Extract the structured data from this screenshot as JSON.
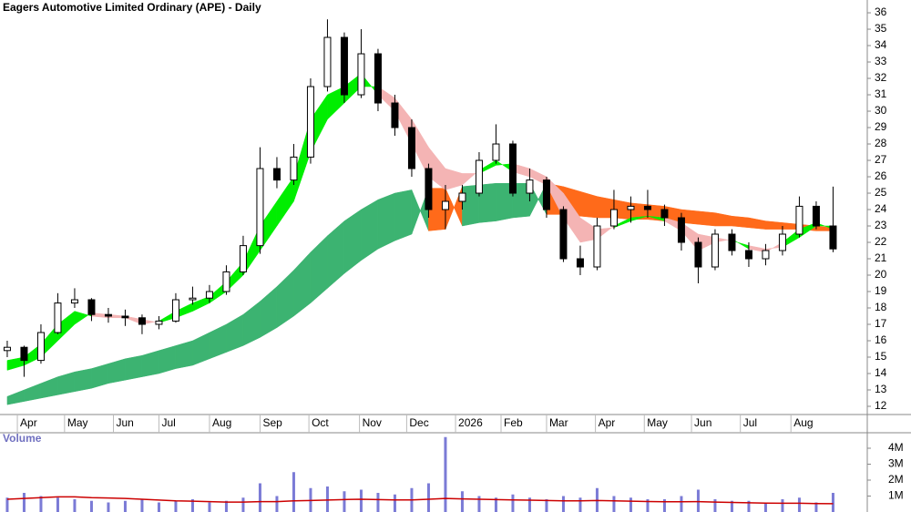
{
  "chart_data": [
    {
      "type": "candlestick",
      "title": "Eagers Automotive Limited Ordinary (APE) - Daily",
      "x": [
        0,
        1,
        2,
        3,
        4,
        5,
        6,
        7,
        8,
        9,
        10,
        11,
        12,
        13,
        14,
        15,
        16,
        17,
        18,
        19,
        20,
        21,
        22,
        23,
        24,
        25,
        26,
        27,
        28,
        29,
        30,
        31,
        32,
        33,
        34,
        35,
        36,
        37,
        38,
        39,
        40,
        41,
        42,
        43,
        44,
        45,
        46,
        47,
        48,
        49
      ],
      "open": [
        15.4,
        15.6,
        14.8,
        16.5,
        18.3,
        18.5,
        17.6,
        17.5,
        17.4,
        17.0,
        17.2,
        18.5,
        18.6,
        19.0,
        20.2,
        21.8,
        26.5,
        25.8,
        27.2,
        31.5,
        34.5,
        31.0,
        33.5,
        30.5,
        29.0,
        26.5,
        24.0,
        24.5,
        25.0,
        27.0,
        28.0,
        25.0,
        25.8,
        24.0,
        21.0,
        20.5,
        23.0,
        24.0,
        24.2,
        24.0,
        23.5,
        22.0,
        20.5,
        22.5,
        21.5,
        21.0,
        21.5,
        22.5,
        24.2,
        23.0
      ],
      "high": [
        16.0,
        15.7,
        17.0,
        18.9,
        19.2,
        18.6,
        18.0,
        17.9,
        17.6,
        17.5,
        18.9,
        19.3,
        19.4,
        20.6,
        22.4,
        27.8,
        27.2,
        28.0,
        32.0,
        35.6,
        34.8,
        35.0,
        33.8,
        31.0,
        29.5,
        26.8,
        25.5,
        25.5,
        27.5,
        29.2,
        28.2,
        26.5,
        26.0,
        24.2,
        21.8,
        23.5,
        25.2,
        24.8,
        25.2,
        24.3,
        23.8,
        22.3,
        22.8,
        22.8,
        22.0,
        21.9,
        23.0,
        24.8,
        24.5,
        25.4
      ],
      "low": [
        15.0,
        13.8,
        14.6,
        16.4,
        18.0,
        17.2,
        17.1,
        16.9,
        16.4,
        16.7,
        17.1,
        18.2,
        18.3,
        18.8,
        20.0,
        21.3,
        25.3,
        25.5,
        26.8,
        31.2,
        30.5,
        30.8,
        30.0,
        28.5,
        26.0,
        23.5,
        22.8,
        24.0,
        24.8,
        26.8,
        24.8,
        24.5,
        23.5,
        20.8,
        20.0,
        20.3,
        22.8,
        23.2,
        23.5,
        23.0,
        21.5,
        19.5,
        20.3,
        21.2,
        20.5,
        20.6,
        21.2,
        22.3,
        22.8,
        21.4
      ],
      "close": [
        15.6,
        14.8,
        16.5,
        18.3,
        18.5,
        17.6,
        17.5,
        17.4,
        17.0,
        17.2,
        18.5,
        18.6,
        19.0,
        20.2,
        21.8,
        26.5,
        25.8,
        27.2,
        31.5,
        34.5,
        31.0,
        33.5,
        30.5,
        29.0,
        26.5,
        24.0,
        24.5,
        25.0,
        27.0,
        28.0,
        25.0,
        25.8,
        24.0,
        21.0,
        20.5,
        23.0,
        24.0,
        24.2,
        24.0,
        23.5,
        22.0,
        20.5,
        22.5,
        21.5,
        21.0,
        21.5,
        22.5,
        24.2,
        23.0,
        21.6
      ],
      "ribbons": [
        {
          "fast": [
            12.6,
            13.0,
            13.4,
            13.8,
            14.1,
            14.3,
            14.6,
            14.9,
            15.1,
            15.4,
            15.7,
            16.0,
            16.5,
            17.0,
            17.6,
            18.4,
            19.3,
            20.3,
            21.4,
            22.4,
            23.3,
            24.0,
            24.6,
            25.0,
            25.2,
            22.7,
            22.8,
            25.4,
            25.5,
            25.6,
            25.6,
            25.6,
            23.7,
            23.7,
            23.6,
            23.5,
            23.5,
            23.4,
            23.4,
            23.3,
            23.2,
            23.1,
            23.0,
            23.0,
            22.9,
            22.8,
            22.8,
            22.8,
            22.7,
            22.7
          ],
          "slow": [
            12.1,
            12.3,
            12.5,
            12.7,
            12.9,
            13.1,
            13.4,
            13.6,
            13.8,
            14.0,
            14.3,
            14.5,
            14.9,
            15.3,
            15.7,
            16.2,
            16.8,
            17.5,
            18.3,
            19.2,
            20.1,
            20.9,
            21.6,
            22.1,
            22.5,
            25.3,
            25.3,
            23.0,
            23.2,
            23.3,
            23.5,
            23.6,
            25.6,
            25.4,
            25.1,
            24.8,
            24.6,
            24.4,
            24.3,
            24.2,
            24.0,
            23.9,
            23.8,
            23.6,
            23.5,
            23.3,
            23.2,
            23.1,
            23.0,
            22.9
          ],
          "up_color": "#3cb371",
          "down_color": "#ff6a1a"
        },
        {
          "fast": [
            14.8,
            15.0,
            15.8,
            17.0,
            17.8,
            17.5,
            17.4,
            17.4,
            17.0,
            17.2,
            17.8,
            18.3,
            18.7,
            19.6,
            20.8,
            23.0,
            24.5,
            26.0,
            29.5,
            31.0,
            31.5,
            32.3,
            31.0,
            30.0,
            28.0,
            26.0,
            25.2,
            25.5,
            26.4,
            27.0,
            26.3,
            26.0,
            25.5,
            23.5,
            22.0,
            22.2,
            23.0,
            23.5,
            23.6,
            23.3,
            22.7,
            21.5,
            22.0,
            22.2,
            21.6,
            21.4,
            22.0,
            22.8,
            23.2,
            22.8
          ],
          "slow": [
            14.2,
            14.5,
            15.0,
            16.0,
            17.0,
            17.7,
            17.6,
            17.5,
            17.3,
            17.1,
            17.4,
            17.8,
            18.3,
            19.0,
            20.0,
            21.5,
            23.0,
            24.5,
            27.5,
            29.5,
            30.5,
            31.5,
            31.5,
            30.8,
            29.5,
            27.8,
            26.5,
            26.2,
            26.2,
            26.7,
            26.8,
            26.5,
            26.0,
            25.0,
            23.5,
            22.8,
            22.9,
            23.3,
            23.6,
            23.5,
            23.2,
            22.5,
            22.3,
            22.1,
            21.8,
            21.6,
            21.7,
            22.3,
            23.0,
            23.0
          ],
          "up_color": "#00ee00",
          "down_color": "#f4b4b4"
        }
      ],
      "xlim": [
        -0.43,
        51.03
      ],
      "ylim": [
        11.5,
        36.78
      ],
      "yticks": [
        12,
        13,
        14,
        15,
        16,
        17,
        18,
        19,
        20,
        21,
        22,
        23,
        24,
        25,
        26,
        27,
        28,
        29,
        30,
        31,
        32,
        33,
        34,
        35,
        36
      ],
      "xticks": [
        {
          "value": 0.6,
          "label": "Apr"
        },
        {
          "value": 3.4,
          "label": "May"
        },
        {
          "value": 6.3,
          "label": "Jun"
        },
        {
          "value": 9.0,
          "label": "Jul"
        },
        {
          "value": 12.0,
          "label": "Aug"
        },
        {
          "value": 15.0,
          "label": "Sep"
        },
        {
          "value": 17.9,
          "label": "Oct"
        },
        {
          "value": 20.9,
          "label": "Nov"
        },
        {
          "value": 23.7,
          "label": "Dec"
        },
        {
          "value": 26.6,
          "label": "2026"
        },
        {
          "value": 29.3,
          "label": "Feb"
        },
        {
          "value": 32.0,
          "label": "Mar"
        },
        {
          "value": 34.9,
          "label": "Apr"
        },
        {
          "value": 37.8,
          "label": "May"
        },
        {
          "value": 40.6,
          "label": "Jun"
        },
        {
          "value": 43.5,
          "label": "Jul"
        },
        {
          "value": 46.5,
          "label": "Aug"
        }
      ]
    },
    {
      "type": "bar",
      "title": "Volume",
      "color": "#7b7bd6",
      "average_color": "#cc0000",
      "values": [
        900000,
        1200000,
        1000000,
        900000,
        800000,
        700000,
        600000,
        700000,
        800000,
        600000,
        700000,
        800000,
        600000,
        700000,
        900000,
        1800000,
        1000000,
        2500000,
        1500000,
        1600000,
        1300000,
        1400000,
        1200000,
        1100000,
        1500000,
        1800000,
        4700000,
        1300000,
        1000000,
        900000,
        1100000,
        900000,
        800000,
        1000000,
        900000,
        1500000,
        1000000,
        900000,
        800000,
        800000,
        1000000,
        1400000,
        800000,
        700000,
        700000,
        600000,
        800000,
        900000,
        600000,
        1200000
      ],
      "average": [
        800000,
        850000,
        900000,
        950000,
        950000,
        900000,
        880000,
        850000,
        800000,
        750000,
        700000,
        680000,
        650000,
        620000,
        620000,
        650000,
        650000,
        700000,
        720000,
        750000,
        780000,
        800000,
        780000,
        760000,
        760000,
        800000,
        850000,
        820000,
        800000,
        780000,
        760000,
        740000,
        720000,
        700000,
        700000,
        720000,
        700000,
        680000,
        660000,
        640000,
        640000,
        650000,
        620000,
        600000,
        580000,
        560000,
        550000,
        550000,
        530000,
        520000
      ],
      "ylim": [
        0,
        4800000
      ],
      "yticks": [
        {
          "value": 1000000,
          "label": "1M"
        },
        {
          "value": 2000000,
          "label": "2M"
        },
        {
          "value": 3000000,
          "label": "3M"
        },
        {
          "value": 4000000,
          "label": "4M"
        }
      ]
    }
  ]
}
